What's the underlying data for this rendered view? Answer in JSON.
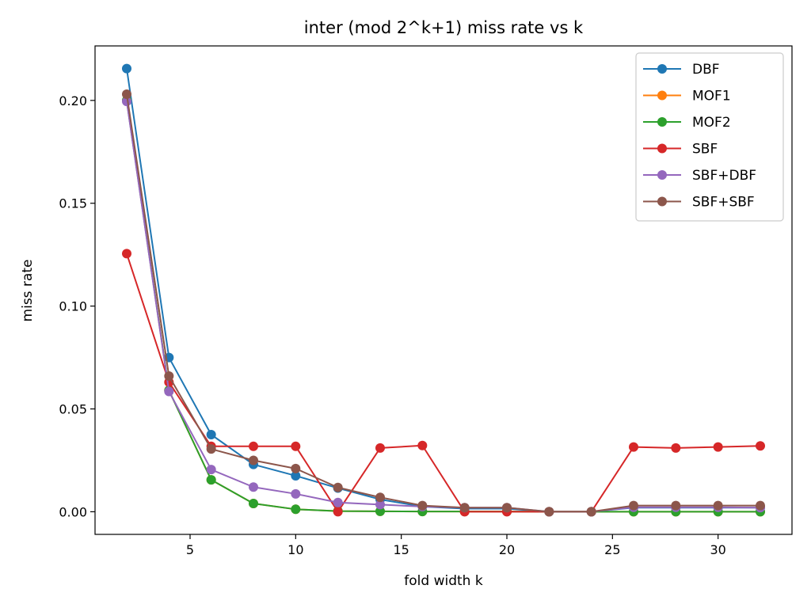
{
  "chart_data": {
    "type": "line",
    "title": "inter (mod 2^k+1) miss rate vs k",
    "xlabel": "fold width k",
    "ylabel": "miss rate",
    "xlim": [
      0.5,
      33.5
    ],
    "ylim": [
      -0.011,
      0.2265
    ],
    "xticks": [
      5,
      10,
      15,
      20,
      25,
      30
    ],
    "xtick_labels": [
      "5",
      "10",
      "15",
      "20",
      "25",
      "30"
    ],
    "yticks": [
      0.0,
      0.05,
      0.1,
      0.15,
      0.2
    ],
    "ytick_labels": [
      "0.00",
      "0.05",
      "0.10",
      "0.15",
      "0.20"
    ],
    "grid": false,
    "legend_position": "top-right",
    "x": [
      2,
      4,
      6,
      8,
      10,
      12,
      14,
      16,
      18,
      20,
      22,
      24,
      26,
      28,
      30,
      32
    ],
    "series": [
      {
        "name": "DBF",
        "color": "#1f77b4",
        "values": [
          0.2155,
          0.075,
          0.0375,
          0.023,
          0.0175,
          0.0115,
          0.006,
          0.0025,
          0.0015,
          0.0015,
          0.0,
          0.0,
          0.002,
          0.002,
          0.002,
          0.002
        ]
      },
      {
        "name": "MOF1",
        "color": "#ff7f0e",
        "values": [
          0.2,
          0.059,
          0.0155,
          0.004,
          0.0012,
          0.0003,
          0.0002,
          0.0001,
          0.0001,
          0.0001,
          0.0,
          0.0,
          0.0,
          0.0,
          0.0,
          0.0
        ]
      },
      {
        "name": "MOF2",
        "color": "#2ca02c",
        "values": [
          0.2,
          0.059,
          0.0155,
          0.004,
          0.0012,
          0.0003,
          0.0002,
          0.0001,
          0.0001,
          0.0001,
          0.0,
          0.0,
          0.0,
          0.0,
          0.0,
          0.0
        ]
      },
      {
        "name": "SBF",
        "color": "#d62728",
        "values": [
          0.1255,
          0.063,
          0.0318,
          0.0318,
          0.0318,
          0.0,
          0.031,
          0.0322,
          0.0,
          0.0,
          0.0,
          0.0,
          0.0315,
          0.031,
          0.0315,
          0.032
        ]
      },
      {
        "name": "SBF+DBF",
        "color": "#9467bd",
        "values": [
          0.1995,
          0.0585,
          0.0205,
          0.012,
          0.0087,
          0.0045,
          0.0035,
          0.0025,
          0.002,
          0.002,
          0.0,
          0.0,
          0.0022,
          0.0022,
          0.0022,
          0.002
        ]
      },
      {
        "name": "SBF+SBF",
        "color": "#8c564b",
        "values": [
          0.203,
          0.066,
          0.0305,
          0.025,
          0.021,
          0.0118,
          0.007,
          0.003,
          0.002,
          0.002,
          0.0,
          0.0,
          0.003,
          0.003,
          0.003,
          0.003
        ]
      }
    ]
  }
}
